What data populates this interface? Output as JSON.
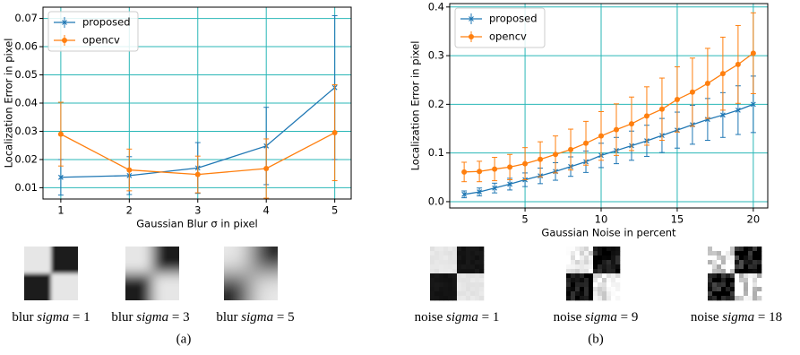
{
  "chart_data": [
    {
      "type": "line",
      "xlabel": "Gaussian Blur σ in pixel",
      "ylabel": "Localization Error in pixel",
      "x": [
        1,
        2,
        3,
        4,
        5
      ],
      "series": [
        {
          "name": "proposed",
          "color": "#1f77b4",
          "marker": "x",
          "values": [
            0.0137,
            0.0143,
            0.017,
            0.0248,
            0.0455
          ],
          "errors": [
            0.0063,
            0.0067,
            0.009,
            0.0137,
            0.0255
          ]
        },
        {
          "name": "opencv",
          "color": "#ff7f0e",
          "marker": "o",
          "values": [
            0.029,
            0.0163,
            0.0147,
            0.0168,
            0.0295
          ],
          "errors": [
            0.0113,
            0.0074,
            0.0065,
            0.0105,
            0.017
          ]
        }
      ],
      "xlim": [
        0.74,
        5.24
      ],
      "ylim": [
        0.006,
        0.074
      ],
      "xticks": [
        1,
        2,
        3,
        4,
        5
      ],
      "yticks": [
        0.01,
        0.02,
        0.03,
        0.04,
        0.05,
        0.06,
        0.07
      ],
      "grid": true,
      "grid_color": "#2ab7b7",
      "legend": "upper left"
    },
    {
      "type": "line",
      "xlabel": "Gaussian Noise in percent",
      "ylabel": "Localization Error in pixel",
      "x": [
        1,
        2,
        3,
        4,
        5,
        6,
        7,
        8,
        9,
        10,
        11,
        12,
        13,
        14,
        15,
        16,
        17,
        18,
        19,
        20
      ],
      "series": [
        {
          "name": "proposed",
          "color": "#1f77b4",
          "marker": "x",
          "values": [
            0.015,
            0.02,
            0.028,
            0.036,
            0.045,
            0.053,
            0.062,
            0.072,
            0.082,
            0.095,
            0.105,
            0.115,
            0.125,
            0.136,
            0.147,
            0.158,
            0.169,
            0.178,
            0.188,
            0.2
          ],
          "errors": [
            0.007,
            0.008,
            0.01,
            0.012,
            0.014,
            0.016,
            0.018,
            0.02,
            0.022,
            0.025,
            0.027,
            0.03,
            0.032,
            0.035,
            0.037,
            0.04,
            0.043,
            0.046,
            0.05,
            0.058
          ]
        },
        {
          "name": "opencv",
          "color": "#ff7f0e",
          "marker": "o",
          "values": [
            0.061,
            0.062,
            0.067,
            0.071,
            0.078,
            0.087,
            0.097,
            0.107,
            0.12,
            0.135,
            0.148,
            0.16,
            0.176,
            0.19,
            0.21,
            0.225,
            0.243,
            0.263,
            0.282,
            0.305
          ],
          "errors": [
            0.02,
            0.021,
            0.024,
            0.026,
            0.033,
            0.036,
            0.038,
            0.042,
            0.045,
            0.05,
            0.053,
            0.055,
            0.06,
            0.064,
            0.067,
            0.07,
            0.072,
            0.075,
            0.08,
            0.083
          ]
        }
      ],
      "xlim": [
        0.05,
        20.95
      ],
      "ylim": [
        -0.013,
        0.407
      ],
      "xticks": [
        5,
        10,
        15,
        20
      ],
      "yticks": [
        {
          "value": 0,
          "label": "0.0"
        },
        0.1,
        0.2,
        0.3,
        0.4
      ],
      "grid": true,
      "grid_color": "#2ab7b7",
      "legend": "upper left"
    }
  ],
  "panels": [
    {
      "label": "(a)",
      "images": [
        {
          "prefix": "blur",
          "var": "sigma",
          "suffix": "= 1"
        },
        {
          "prefix": "blur",
          "var": "sigma",
          "suffix": "= 3"
        },
        {
          "prefix": "blur",
          "var": "sigma",
          "suffix": "= 5"
        }
      ]
    },
    {
      "label": "(b)",
      "images": [
        {
          "prefix": "noise",
          "var": "sigma",
          "suffix": "= 1"
        },
        {
          "prefix": "noise",
          "var": "sigma",
          "suffix": "= 9"
        },
        {
          "prefix": "noise",
          "var": "sigma",
          "suffix": "= 18"
        }
      ]
    }
  ]
}
